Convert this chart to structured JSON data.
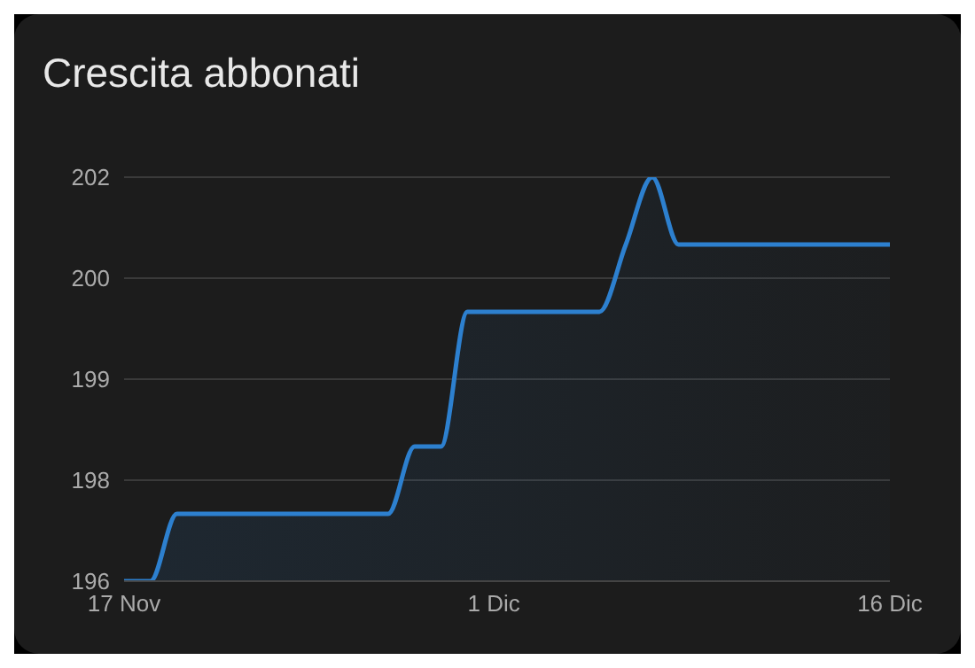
{
  "chart_data": {
    "type": "area",
    "title": "Crescita abbonati",
    "x": [
      "--11-17",
      "--11-18",
      "--11-19",
      "--11-27",
      "--11-28",
      "--11-29",
      "--11-30",
      "--12-05",
      "--12-06",
      "--12-07",
      "--12-08",
      "--12-16"
    ],
    "series": [
      {
        "color": "#2d80cf",
        "values": [
          196,
          196,
          197,
          197,
          198,
          198,
          200,
          200,
          201,
          202,
          201,
          201
        ]
      }
    ],
    "xlim": [
      "--11-17",
      "--12-16"
    ],
    "xticks": [
      {
        "value": "--11-17",
        "label": "17 Nov"
      },
      {
        "value": "--12-01",
        "label": "1 Dic"
      },
      {
        "value": "--12-16",
        "label": "16 Dic"
      }
    ],
    "ylim": [
      196,
      202
    ],
    "yticks": [
      {
        "value": 196,
        "label": "196"
      },
      {
        "value": 197.5,
        "label": "198"
      },
      {
        "value": 199,
        "label": "199"
      },
      {
        "value": 200.5,
        "label": "200"
      },
      {
        "value": 202,
        "label": "202"
      }
    ],
    "grid": "y",
    "legend": false
  }
}
